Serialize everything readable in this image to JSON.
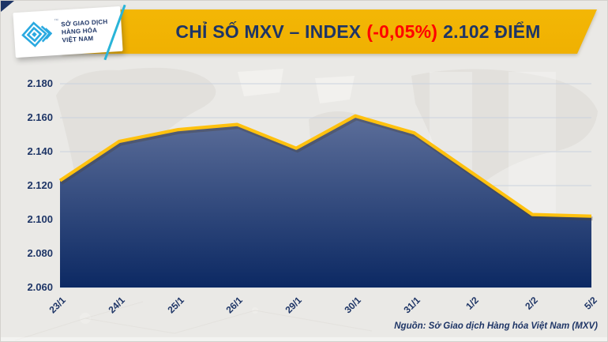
{
  "header": {
    "logo": {
      "tm": "™",
      "lines": [
        "SỞ GIAO DỊCH",
        "HÀNG HÓA",
        "VIỆT NAM"
      ]
    },
    "title": {
      "main": "CHỈ SỐ MXV – INDEX",
      "change": "(-0,05%)",
      "value": "2.102 ĐIỂM"
    }
  },
  "chart_data": {
    "type": "area",
    "title": "CHỈ SỐ MXV – INDEX (-0,05%) 2.102 ĐIỂM",
    "categories": [
      "23/1",
      "24/1",
      "25/1",
      "26/1",
      "29/1",
      "30/1",
      "31/1",
      "1/2",
      "2/2",
      "5/2"
    ],
    "values": [
      2123,
      2146,
      2153,
      2156,
      2142,
      2161,
      2151,
      2127,
      2103,
      2102
    ],
    "ylim": [
      2060,
      2180
    ],
    "ytick_step": 20,
    "yticks": [
      "2.180",
      "2.160",
      "2.140",
      "2.120",
      "2.100",
      "2.080",
      "2.060"
    ],
    "grid": true,
    "legend": "none",
    "xlabel": "",
    "ylabel": "",
    "line_color": "#FFC10E",
    "fill_gradient": [
      "#6B7BA4",
      "#0C2963"
    ]
  },
  "footer": {
    "source": "Nguồn: Sở Giao dịch Hàng hóa Việt Nam (MXV)"
  },
  "colors": {
    "banner_gold": "#EFAF00",
    "navy": "#1E3566",
    "change_red": "#FF0000",
    "background": "#EAE9E6",
    "grid_line": "#CBD2DE",
    "logo_blue": "#2AA9E0",
    "cyan_accent": "#29B4D8"
  }
}
